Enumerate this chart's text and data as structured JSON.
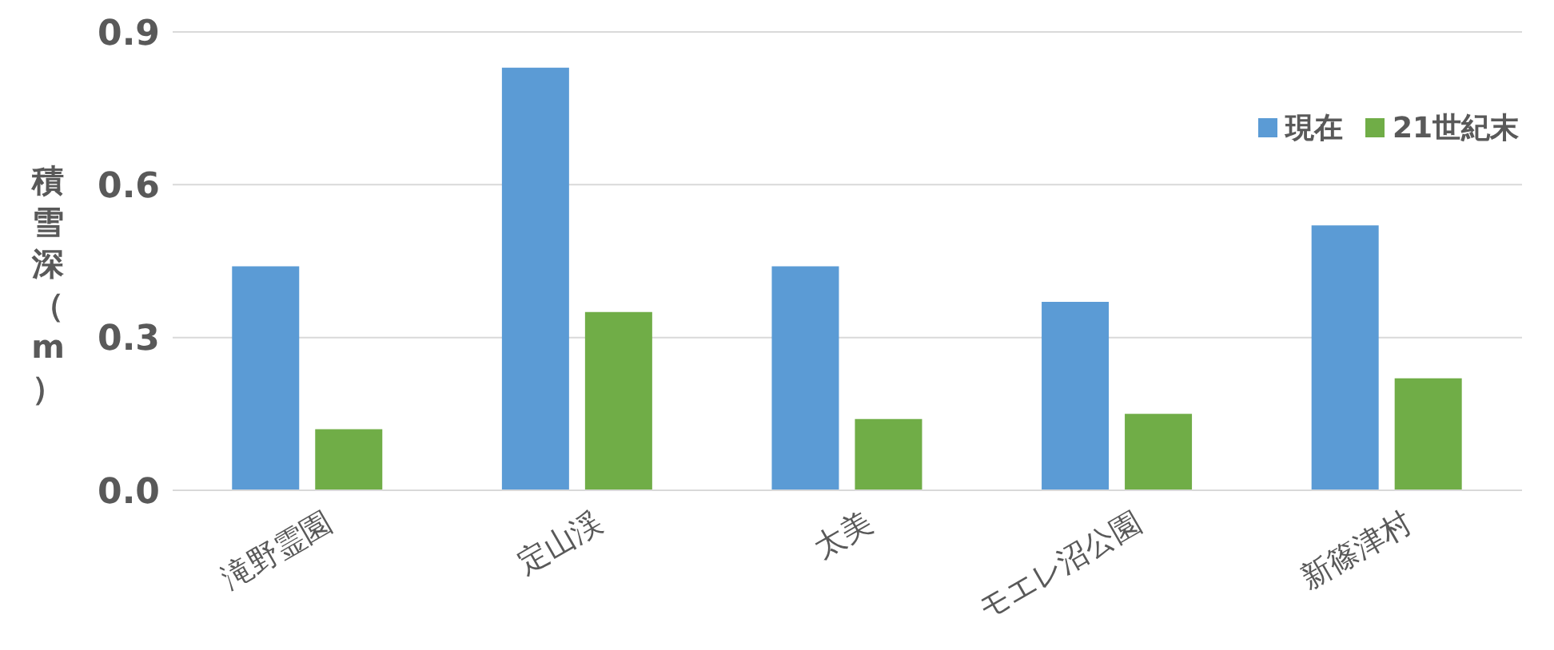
{
  "chart_data": {
    "type": "bar",
    "ylabel": "積雪深（m）",
    "categories": [
      "滝野霊園",
      "定山渓",
      "太美",
      "モエレ沼公園",
      "新篠津村"
    ],
    "series": [
      {
        "name": "現在",
        "color": "#5b9bd5",
        "values": [
          0.44,
          0.83,
          0.44,
          0.37,
          0.52
        ]
      },
      {
        "name": "21世紀末",
        "color": "#70ad47",
        "values": [
          0.12,
          0.35,
          0.14,
          0.15,
          0.22
        ]
      }
    ],
    "ylim": [
      0,
      0.9
    ],
    "yticks": [
      {
        "value": 0,
        "label": "0.0"
      },
      {
        "value": 0.3,
        "label": "0.3"
      },
      {
        "value": 0.6,
        "label": "0.6"
      },
      {
        "value": 0.9,
        "label": "0.9"
      }
    ],
    "grid": "y",
    "legend": "top right"
  }
}
